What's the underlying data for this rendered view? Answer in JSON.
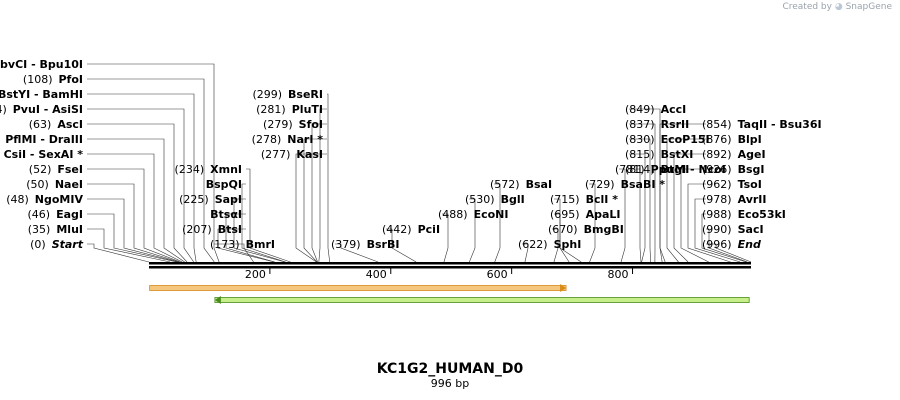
{
  "header": {
    "credit_text": "Created by",
    "brand": "SnapGene"
  },
  "sequence": {
    "name": "KC1G2_HUMAN_D0",
    "length_label": "996 bp",
    "length": 996
  },
  "axis": {
    "ticks": [
      200,
      400,
      600,
      800
    ]
  },
  "features": [
    {
      "name": "orange-feature",
      "start": 1,
      "end": 690,
      "direction": "forward",
      "fill": "#f5c77e",
      "stroke": "#d98b1a"
    },
    {
      "name": "green-feature",
      "start": 109,
      "end": 993,
      "direction": "reverse",
      "fill": "#c6ef8c",
      "stroke": "#4a8a1c"
    }
  ],
  "colors": {
    "backbone": "#000000",
    "leader": "#333333",
    "text": "#000000"
  },
  "sites": [
    {
      "pos": "(0)",
      "bp": 0,
      "enzymes": [
        "Start"
      ],
      "special": true
    },
    {
      "pos": "(35)",
      "bp": 35,
      "enzymes": [
        "MluI"
      ]
    },
    {
      "pos": "(46)",
      "bp": 46,
      "enzymes": [
        "EagI"
      ]
    },
    {
      "pos": "(48)",
      "bp": 48,
      "enzymes": [
        "NgoMIV"
      ]
    },
    {
      "pos": "(50)",
      "bp": 50,
      "enzymes": [
        "NaeI"
      ]
    },
    {
      "pos": "(52)",
      "bp": 52,
      "enzymes": [
        "FseI"
      ]
    },
    {
      "pos": "(55)",
      "bp": 55,
      "enzymes": [
        "CsiI",
        "SexAI *"
      ]
    },
    {
      "pos": "(59)",
      "bp": 59,
      "enzymes": [
        "PflMI",
        "DraIII"
      ]
    },
    {
      "pos": "(63)",
      "bp": 63,
      "enzymes": [
        "AscI"
      ]
    },
    {
      "pos": "(74)",
      "bp": 74,
      "enzymes": [
        "PvuI",
        "AsiSI"
      ]
    },
    {
      "pos": "(78)",
      "bp": 78,
      "enzymes": [
        "MfII *",
        "BstYI",
        "BamHI"
      ]
    },
    {
      "pos": "(108)",
      "bp": 108,
      "enzymes": [
        "PfoI"
      ]
    },
    {
      "pos": "(116)",
      "bp": 116,
      "enzymes": [
        "BbvCI",
        "Bpu10I"
      ]
    },
    {
      "pos": "(173)",
      "bp": 173,
      "enzymes": [
        "BmrI"
      ]
    },
    {
      "pos": "(207)",
      "bp": 207,
      "enzymes": [
        "BtsI"
      ]
    },
    {
      "pos": "",
      "bp": 208,
      "enzymes": [
        "BtsαI"
      ]
    },
    {
      "pos": "(225)",
      "bp": 225,
      "enzymes": [
        "SapI"
      ]
    },
    {
      "pos": "",
      "bp": 226,
      "enzymes": [
        "BspQI"
      ]
    },
    {
      "pos": "(234)",
      "bp": 234,
      "enzymes": [
        "XmnI"
      ]
    },
    {
      "pos": "(277)",
      "bp": 277,
      "enzymes": [
        "KasI"
      ]
    },
    {
      "pos": "(278)",
      "bp": 278,
      "enzymes": [
        "NarI *"
      ]
    },
    {
      "pos": "(279)",
      "bp": 279,
      "enzymes": [
        "SfoI"
      ]
    },
    {
      "pos": "(281)",
      "bp": 281,
      "enzymes": [
        "PluTI"
      ]
    },
    {
      "pos": "(299)",
      "bp": 299,
      "enzymes": [
        "BseRI"
      ]
    },
    {
      "pos": "(379)",
      "bp": 379,
      "enzymes": [
        "BsrBI"
      ]
    },
    {
      "pos": "(442)",
      "bp": 442,
      "enzymes": [
        "PciI"
      ]
    },
    {
      "pos": "(488)",
      "bp": 488,
      "enzymes": [
        "EcoNI"
      ]
    },
    {
      "pos": "(530)",
      "bp": 530,
      "enzymes": [
        "BglI"
      ]
    },
    {
      "pos": "(572)",
      "bp": 572,
      "enzymes": [
        "BsaI"
      ]
    },
    {
      "pos": "(622)",
      "bp": 622,
      "enzymes": [
        "SphI"
      ]
    },
    {
      "pos": "(670)",
      "bp": 670,
      "enzymes": [
        "BmgBI"
      ]
    },
    {
      "pos": "(695)",
      "bp": 695,
      "enzymes": [
        "ApaLI"
      ]
    },
    {
      "pos": "(715)",
      "bp": 715,
      "enzymes": [
        "BclI *"
      ]
    },
    {
      "pos": "(729)",
      "bp": 729,
      "enzymes": [
        "BsaBI *"
      ]
    },
    {
      "pos": "(781)",
      "bp": 781,
      "enzymes": [
        "PpuMI"
      ]
    },
    {
      "pos": "(814)",
      "bp": 814,
      "enzymes": [
        "BtgI",
        "NcoI"
      ]
    },
    {
      "pos": "(815)",
      "bp": 815,
      "enzymes": [
        "BstXI"
      ]
    },
    {
      "pos": "(830)",
      "bp": 830,
      "enzymes": [
        "EcoP15I"
      ]
    },
    {
      "pos": "(837)",
      "bp": 837,
      "enzymes": [
        "RsrII"
      ]
    },
    {
      "pos": "(849)",
      "bp": 849,
      "enzymes": [
        "AccI"
      ]
    },
    {
      "pos": "(854)",
      "bp": 854,
      "enzymes": [
        "TaqII",
        "Bsu36I"
      ]
    },
    {
      "pos": "(876)",
      "bp": 876,
      "enzymes": [
        "BlpI"
      ]
    },
    {
      "pos": "(892)",
      "bp": 892,
      "enzymes": [
        "AgeI"
      ]
    },
    {
      "pos": "(926)",
      "bp": 926,
      "enzymes": [
        "BsgI"
      ]
    },
    {
      "pos": "(962)",
      "bp": 962,
      "enzymes": [
        "TsoI"
      ]
    },
    {
      "pos": "(978)",
      "bp": 978,
      "enzymes": [
        "AvrII"
      ]
    },
    {
      "pos": "(988)",
      "bp": 988,
      "enzymes": [
        "Eco53kI"
      ]
    },
    {
      "pos": "(990)",
      "bp": 990,
      "enzymes": [
        "SacI"
      ]
    },
    {
      "pos": "(996)",
      "bp": 996,
      "enzymes": [
        "End"
      ],
      "special": true
    }
  ]
}
